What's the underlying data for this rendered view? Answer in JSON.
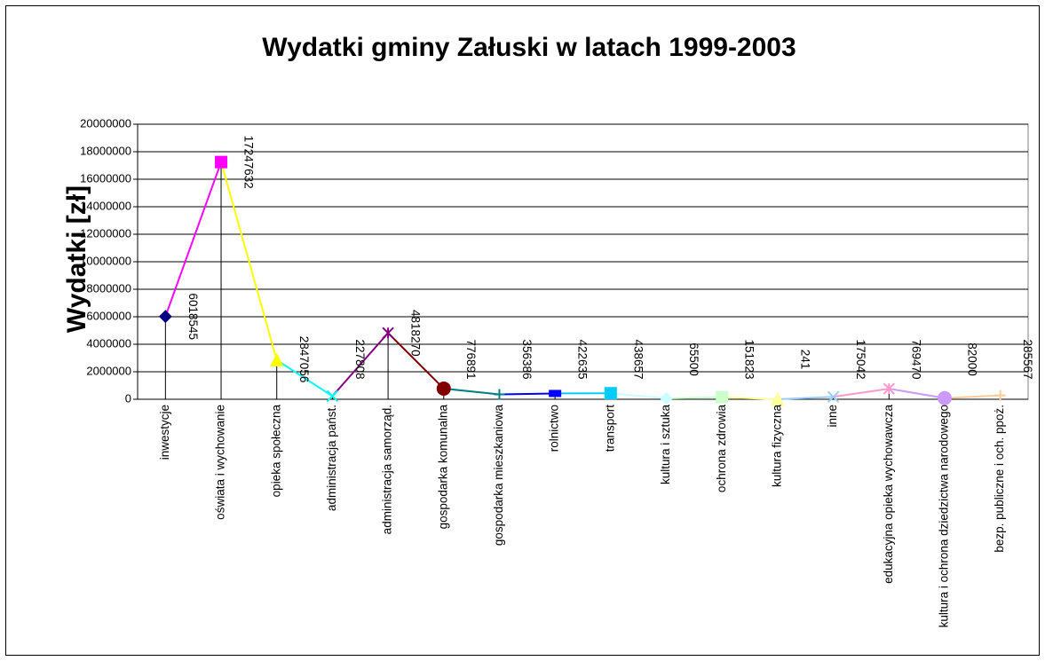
{
  "chart_data": {
    "type": "line",
    "title": "Wydatki gminy Załuski w latach 1999-2003",
    "y_label": "Wydatki [zł]",
    "categories": [
      "inwestycje",
      "oświata i wychowanie",
      "opieka społeczna",
      "administracja państ.",
      "administracja samorząd.",
      "gospodarka komunalna",
      "gospodarka mieszkaniowa",
      "rolnictwo",
      "transport",
      "kultura i sztuka",
      "ochrona zdrowia",
      "kultura fizyczna",
      "inne",
      "edukacyjna opieka wychowawcza",
      "kultura i ochrona dziedzictwa narodowego",
      "bezp. publiczne i och. ppoż."
    ],
    "values": [
      6018545,
      17247632,
      2847056,
      227808,
      4818270,
      776891,
      356386,
      422635,
      438657,
      65500,
      151823,
      241,
      175042,
      769470,
      82000,
      285567
    ],
    "point_colors": [
      "#000080",
      "#ff00ff",
      "#ffff00",
      "#00ffff",
      "#800080",
      "#800000",
      "#008080",
      "#0000ff",
      "#00ccff",
      "#ccffff",
      "#ccffcc",
      "#ffff99",
      "#99ccff",
      "#ff99cc",
      "#cc99ff",
      "#ffcc99"
    ],
    "markers": [
      "diamond",
      "square",
      "triangle",
      "x",
      "star",
      "circle",
      "plus",
      "bar",
      "square",
      "diamond",
      "square",
      "triangle",
      "x",
      "star",
      "circle",
      "plus"
    ],
    "ylim": [
      0,
      20000000
    ],
    "yticks": [
      0,
      2000000,
      4000000,
      6000000,
      8000000,
      10000000,
      12000000,
      14000000,
      16000000,
      18000000,
      20000000
    ],
    "grid": true,
    "drop_lines": true
  }
}
